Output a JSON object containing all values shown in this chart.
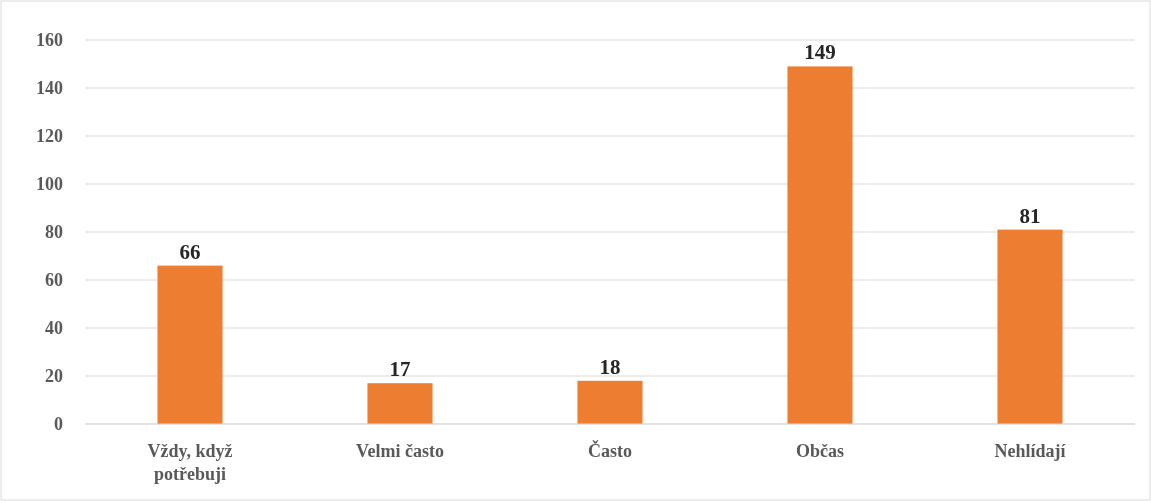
{
  "chart_data": {
    "type": "bar",
    "categories": [
      "Vždy, když potřebuji",
      "Velmi často",
      "Často",
      "Občas",
      "Nehlídají"
    ],
    "values": [
      66,
      17,
      18,
      149,
      81
    ],
    "color": "#ed7d31",
    "ylim": [
      0,
      160
    ],
    "yticks": [
      0,
      20,
      40,
      60,
      80,
      100,
      120,
      140,
      160
    ],
    "grid": "y",
    "data_labels": true
  }
}
